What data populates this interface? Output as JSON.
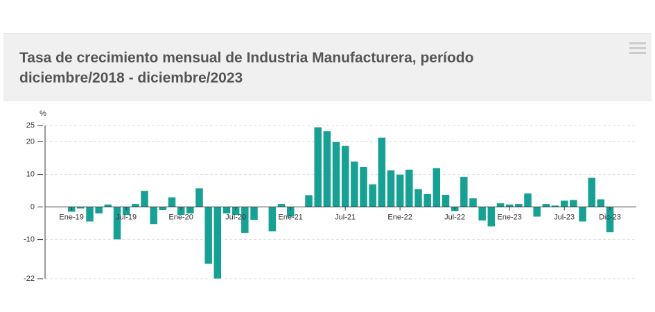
{
  "chart_data": {
    "type": "bar",
    "title": "Tasa de crecimiento mensual de Industria Manufacturera, período diciembre/2018 - diciembre/2023",
    "y_label": "%",
    "categories": [
      null,
      "Ene-19",
      null,
      null,
      null,
      null,
      null,
      "Jul-19",
      null,
      null,
      null,
      null,
      null,
      "Ene-20",
      null,
      null,
      null,
      null,
      null,
      "Jul-20",
      null,
      null,
      null,
      null,
      null,
      "Ene-21",
      null,
      null,
      null,
      null,
      null,
      "Jul-21",
      null,
      null,
      null,
      null,
      null,
      "Ene-22",
      null,
      null,
      null,
      null,
      null,
      "Jul-22",
      null,
      null,
      null,
      null,
      null,
      "Ene-23",
      null,
      null,
      null,
      null,
      null,
      "Jul-23",
      null,
      null,
      null,
      null,
      "Dic-23"
    ],
    "values": [
      0,
      -1.5,
      -0.5,
      -4.5,
      -2,
      0.8,
      -10,
      -2.5,
      1,
      5,
      -5.3,
      -1,
      3,
      -2.5,
      -2,
      5.8,
      -17.5,
      -22,
      -2,
      -2.5,
      -8,
      -4,
      0,
      -7.5,
      1,
      -3,
      0,
      3.7,
      24.5,
      23.3,
      20,
      18.8,
      14,
      12.3,
      7,
      21.3,
      11.3,
      10,
      11.5,
      5.5,
      4,
      12,
      3.8,
      -1.3,
      9.3,
      2.7,
      -4.2,
      -6,
      1.2,
      0.8,
      1,
      4.2,
      -3,
      1,
      0.5,
      2,
      2.2,
      -4.5,
      9,
      2.4,
      -7.8
    ],
    "color": "#17a195",
    "ylim": [
      -22,
      25
    ],
    "yticks": [
      -22,
      -10,
      0,
      10,
      20,
      25
    ],
    "grid": true
  }
}
